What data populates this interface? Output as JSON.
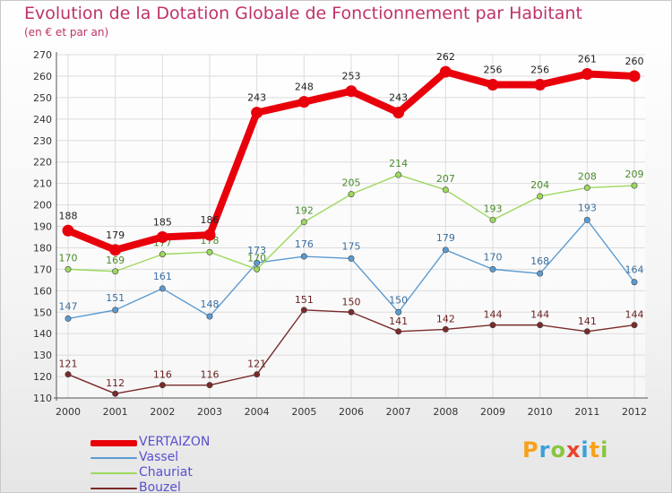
{
  "header": {
    "title": "Evolution de la Dotation Globale de Fonctionnement par Habitant",
    "subtitle": "(en € et par an)"
  },
  "brand": {
    "letters": [
      "P",
      "r",
      "o",
      "x",
      "i",
      "t",
      "i"
    ]
  },
  "chart_data": {
    "type": "line",
    "x": [
      "2000",
      "2001",
      "2002",
      "2003",
      "2004",
      "2005",
      "2006",
      "2007",
      "2008",
      "2009",
      "2010",
      "2011",
      "2012"
    ],
    "ylim": [
      110,
      270
    ],
    "yticks": [
      110,
      120,
      130,
      140,
      150,
      160,
      170,
      180,
      190,
      200,
      210,
      220,
      230,
      240,
      250,
      260,
      270
    ],
    "grid": true,
    "legend_position": "bottom-left",
    "series": [
      {
        "name": "VERTAIZON",
        "values": [
          188,
          179,
          185,
          186,
          243,
          248,
          253,
          243,
          262,
          256,
          256,
          261,
          260
        ],
        "color": "#e8000b",
        "label_color": "#222222"
      },
      {
        "name": "Vassel",
        "values": [
          147,
          151,
          161,
          148,
          173,
          176,
          175,
          150,
          179,
          170,
          168,
          193,
          164
        ],
        "color": "#5b9bd1",
        "label_color": "#3a6e9e"
      },
      {
        "name": "Chauriat",
        "values": [
          170,
          169,
          177,
          178,
          170,
          192,
          205,
          214,
          207,
          193,
          204,
          208,
          209
        ],
        "color": "#9dd85e",
        "label_color": "#4a8a2a"
      },
      {
        "name": "Bouzel",
        "values": [
          121,
          112,
          116,
          116,
          121,
          151,
          150,
          141,
          142,
          144,
          144,
          141,
          144
        ],
        "color": "#7a2a2a",
        "label_color": "#6a1e1e"
      }
    ]
  }
}
